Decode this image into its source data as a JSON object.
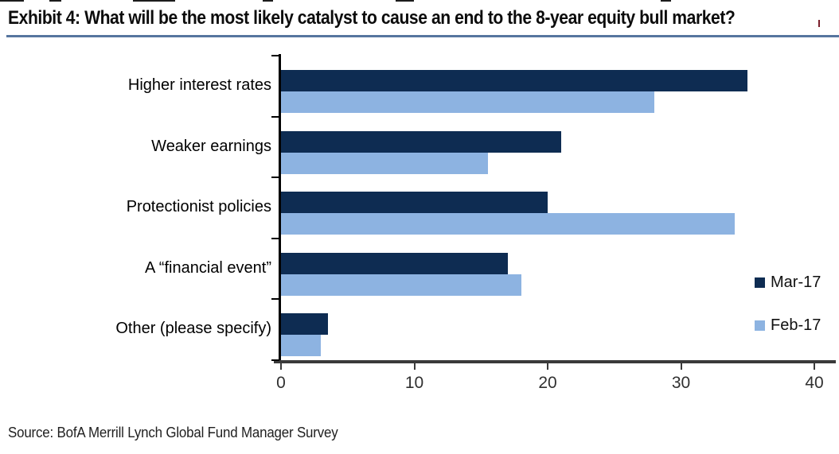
{
  "page": {
    "title": "Exhibit 4: What will be the most likely catalyst to cause an end to the 8-year equity bull market?",
    "source": "Source: BofA Merrill Lynch Global Fund Manager Survey"
  },
  "chart_data": {
    "type": "bar",
    "orientation": "horizontal",
    "title": "Exhibit 4: What will be the most likely catalyst to cause an end to the 8-year equity bull market?",
    "categories": [
      "Higher interest rates",
      "Weaker earnings",
      "Protectionist policies",
      "A “financial event”",
      "Other (please specify)"
    ],
    "series": [
      {
        "name": "Mar-17",
        "color": "#0E2C52",
        "values": [
          35,
          21,
          20,
          17,
          3.5
        ]
      },
      {
        "name": "Feb-17",
        "color": "#8DB3E1",
        "values": [
          28,
          15.5,
          34,
          18,
          3
        ]
      }
    ],
    "xlabel": "",
    "ylabel": "",
    "xlim": [
      0,
      40
    ],
    "xticks": [
      0,
      10,
      20,
      30,
      40
    ],
    "grid": false,
    "legend_position": "right"
  },
  "colors": {
    "mar_navy": "#0E2C52",
    "feb_light_blue": "#8DB3E1",
    "title_underline": "#56759f",
    "axis": "#3a3a3a"
  }
}
